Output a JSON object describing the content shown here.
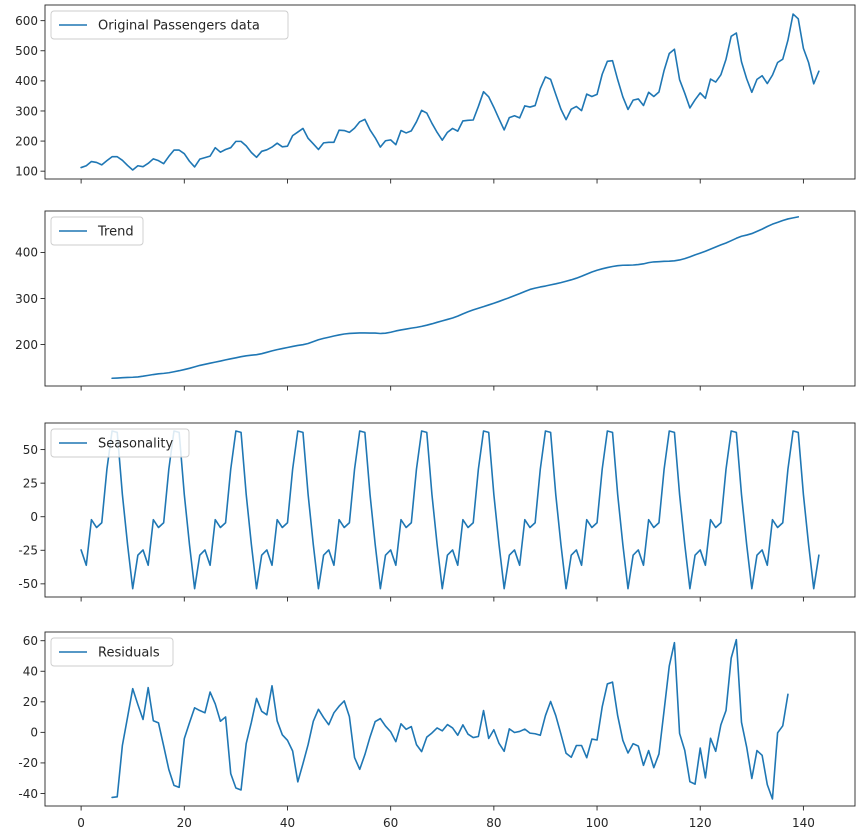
{
  "chart_data": [
    {
      "type": "line",
      "title": "",
      "xlabel": "",
      "ylabel": "",
      "xlim": [
        -7,
        150
      ],
      "ylim": [
        74,
        652
      ],
      "x_ticks": [
        0,
        20,
        40,
        60,
        80,
        100,
        120,
        140
      ],
      "y_ticks": [
        100,
        200,
        300,
        400,
        500,
        600
      ],
      "show_x_tick_labels": false,
      "legend": "upper-left",
      "series": [
        {
          "name": "Original Passengers data",
          "color": "#1f77b4",
          "x_start": 0,
          "values": [
            112,
            118,
            132,
            129,
            121,
            135,
            148,
            148,
            136,
            119,
            104,
            118,
            115,
            126,
            141,
            135,
            125,
            149,
            170,
            170,
            158,
            133,
            114,
            140,
            145,
            150,
            178,
            163,
            172,
            178,
            199,
            199,
            184,
            162,
            146,
            166,
            171,
            180,
            193,
            181,
            183,
            218,
            230,
            242,
            209,
            191,
            172,
            194,
            196,
            196,
            236,
            235,
            229,
            243,
            264,
            272,
            237,
            211,
            180,
            201,
            204,
            188,
            235,
            227,
            234,
            264,
            302,
            293,
            259,
            229,
            203,
            229,
            242,
            233,
            267,
            269,
            270,
            315,
            364,
            347,
            312,
            274,
            237,
            278,
            284,
            277,
            317,
            313,
            318,
            374,
            413,
            405,
            355,
            306,
            271,
            306,
            315,
            301,
            356,
            348,
            355,
            422,
            465,
            467,
            404,
            347,
            305,
            336,
            340,
            318,
            362,
            348,
            363,
            435,
            491,
            505,
            404,
            359,
            310,
            337,
            360,
            342,
            406,
            396,
            420,
            472,
            548,
            559,
            463,
            407,
            362,
            405,
            417,
            391,
            419,
            461,
            472,
            535,
            622,
            606,
            508,
            461,
            390,
            432
          ]
        }
      ]
    },
    {
      "type": "line",
      "title": "",
      "xlabel": "",
      "ylabel": "",
      "xlim": [
        -7,
        150
      ],
      "ylim": [
        110,
        490
      ],
      "x_ticks": [
        0,
        20,
        40,
        60,
        80,
        100,
        120,
        140
      ],
      "y_ticks": [
        200,
        300,
        400
      ],
      "show_x_tick_labels": false,
      "legend": "upper-left",
      "series": [
        {
          "name": "Trend",
          "color": "#1f77b4",
          "x_start": 6,
          "values": [
            126.8,
            127.3,
            127.96,
            128.58,
            129.0,
            129.75,
            131.25,
            133.08,
            134.92,
            136.42,
            137.42,
            138.75,
            140.92,
            143.17,
            145.71,
            148.42,
            151.54,
            154.71,
            157.12,
            159.54,
            161.83,
            164.12,
            166.67,
            169.08,
            171.25,
            173.58,
            175.46,
            176.83,
            178.04,
            180.17,
            183.12,
            186.21,
            189.0,
            191.29,
            193.58,
            195.83,
            198.04,
            199.75,
            202.21,
            206.25,
            210.42,
            213.38,
            215.83,
            218.5,
            220.92,
            222.92,
            224.08,
            224.71,
            225.33,
            225.33,
            224.96,
            224.92,
            224.0,
            224.71,
            226.67,
            229.5,
            231.79,
            233.71,
            235.67,
            237.29,
            239.42,
            242.04,
            245.0,
            248.33,
            251.46,
            254.5,
            257.58,
            261.83,
            266.67,
            271.12,
            275.21,
            278.88,
            282.29,
            286.04,
            289.71,
            293.62,
            297.71,
            301.79,
            306.12,
            310.5,
            315.25,
            319.62,
            322.5,
            325.04,
            327.08,
            329.54,
            331.83,
            334.46,
            337.54,
            340.54,
            344.08,
            348.25,
            353.0,
            357.62,
            361.38,
            364.5,
            367.17,
            369.46,
            371.21,
            372.17,
            372.42,
            372.75,
            373.62,
            375.25,
            377.92,
            379.5,
            380.0,
            380.71,
            380.96,
            381.83,
            383.67,
            386.5,
            390.33,
            394.71,
            398.62,
            402.54,
            407.17,
            411.88,
            416.33,
            420.5,
            425.5,
            430.71,
            435.12,
            437.71,
            440.96,
            445.83,
            450.62,
            456.33,
            461.38,
            465.21,
            469.33,
            472.75,
            475.04,
            477.25
          ]
        }
      ]
    },
    {
      "type": "line",
      "title": "",
      "xlabel": "",
      "ylabel": "",
      "xlim": [
        -7,
        150
      ],
      "ylim": [
        -59.8,
        69.8
      ],
      "x_ticks": [
        0,
        20,
        40,
        60,
        80,
        100,
        120,
        140
      ],
      "y_ticks": [
        -50,
        -25,
        0,
        25,
        50
      ],
      "show_x_tick_labels": false,
      "legend": "upper-left",
      "series": [
        {
          "name": "Seasonality",
          "color": "#1f77b4",
          "x_start": 0,
          "pattern": [
            -24.75,
            -36.19,
            -2.24,
            -8.04,
            -4.51,
            35.4,
            63.83,
            62.82,
            16.52,
            -20.64,
            -53.59,
            -28.62
          ],
          "repeat": 12
        }
      ]
    },
    {
      "type": "line",
      "title": "",
      "xlabel": "",
      "ylabel": "",
      "xlim": [
        -7,
        150
      ],
      "ylim": [
        -48.2,
        65.7
      ],
      "x_ticks": [
        0,
        20,
        40,
        60,
        80,
        100,
        120,
        140
      ],
      "y_ticks": [
        -40,
        -20,
        0,
        20,
        40,
        60
      ],
      "show_x_tick_labels": true,
      "legend": "upper-left",
      "series": [
        {
          "name": "Residuals",
          "color": "#1f77b4",
          "x_start": 6,
          "values": [
            -42.6,
            -42.2,
            -8.5,
            9.9,
            28.6,
            18.2,
            8.4,
            29.3,
            7.6,
            6.2,
            -8.9,
            -24.3,
            -34.7,
            -36.0,
            -4.1,
            6.2,
            16.1,
            14.3,
            12.8,
            26.4,
            18.6,
            7.3,
            10.1,
            -27.0,
            -36.4,
            -37.7,
            -7.3,
            6.6,
            22.2,
            13.8,
            11.5,
            30.5,
            7.5,
            -1.6,
            -5.2,
            -12.2,
            -32.4,
            -20.5,
            -8.0,
            7.2,
            15.1,
            9.7,
            5.0,
            12.8,
            17.1,
            20.6,
            10.3,
            -16.5,
            -24.2,
            -14.6,
            -3.0,
            7.1,
            9.0,
            4.1,
            0.4,
            -6.1,
            5.6,
            2.0,
            3.8,
            -8.0,
            -12.6,
            -3.1,
            -0.4,
            2.9,
            1.0,
            5.1,
            2.9,
            -1.9,
            4.9,
            -1.2,
            -3.4,
            -2.7,
            14.3,
            -4.0,
            1.7,
            -7.2,
            -12.4,
            2.3,
            -0.1,
            0.6,
            2.1,
            -0.5,
            -0.9,
            -1.9,
            11.0,
            20.2,
            11.0,
            -1.1,
            -13.7,
            -16.3,
            -8.6,
            -8.6,
            -16.6,
            -4.4,
            -5.0,
            16.7,
            31.7,
            32.9,
            10.9,
            -5.2,
            -13.5,
            -7.4,
            -9.0,
            -21.6,
            -11.9,
            -23.1,
            -14.1,
            14.4,
            43.5,
            58.7,
            -0.7,
            -11.8,
            -32.3,
            -33.9,
            -10.3,
            -29.8,
            -3.9,
            -12.4,
            4.9,
            14.3,
            48.6,
            60.7,
            6.6,
            -9.6,
            -30.2,
            -11.9,
            -15.0,
            -34.2,
            -43.6,
            -0.3,
            4.3,
            24.9
          ]
        }
      ]
    }
  ]
}
